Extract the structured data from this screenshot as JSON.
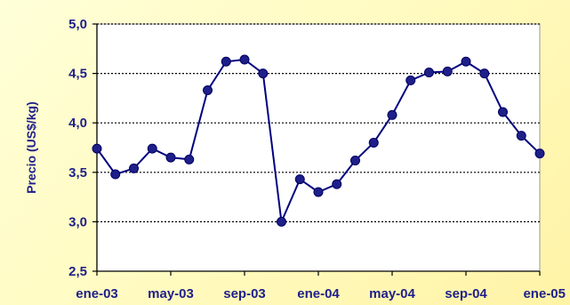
{
  "chart_data": {
    "type": "line",
    "ylabel": "Precio (US$/kg)",
    "ylim": [
      2.5,
      5.0
    ],
    "y_ticks": [
      "2,5",
      "3,0",
      "3,5",
      "4,0",
      "4,5",
      "5,0"
    ],
    "x_tick_labels": [
      "ene-03",
      "may-03",
      "sep-03",
      "ene-04",
      "may-04",
      "sep-04",
      "ene-05"
    ],
    "categories": [
      "ene-03",
      "feb-03",
      "mar-03",
      "abr-03",
      "may-03",
      "jun-03",
      "jul-03",
      "ago-03",
      "sep-03",
      "oct-03",
      "nov-03",
      "dic-03",
      "ene-04",
      "feb-04",
      "mar-04",
      "abr-04",
      "may-04",
      "jun-04",
      "jul-04",
      "ago-04",
      "sep-04",
      "oct-04",
      "nov-04",
      "dic-04",
      "ene-05"
    ],
    "values": [
      3.74,
      3.48,
      3.54,
      3.74,
      3.65,
      3.63,
      4.33,
      4.62,
      4.64,
      4.5,
      3.0,
      3.43,
      3.3,
      3.38,
      3.62,
      3.8,
      4.08,
      4.43,
      4.51,
      4.52,
      4.62,
      4.5,
      4.11,
      3.87,
      3.69
    ],
    "grid": true,
    "colors": {
      "line": "#000080",
      "marker": "#1f1f8a",
      "text": "#1f1f8a",
      "grid": "#000000",
      "plot_bg": "#ffffff"
    }
  }
}
